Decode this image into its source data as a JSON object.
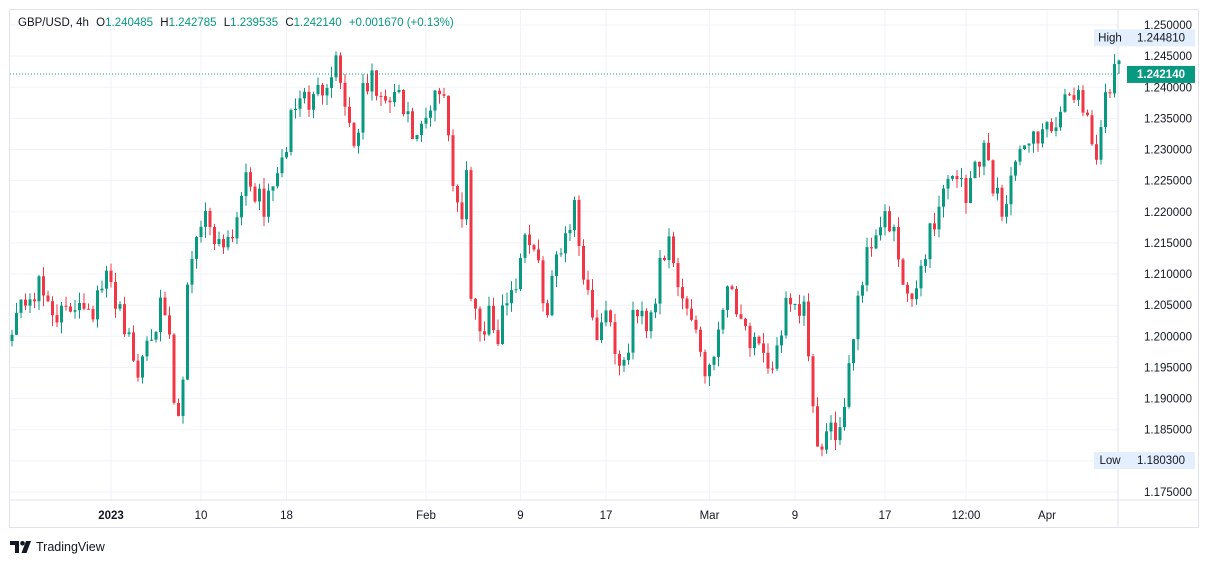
{
  "legend": {
    "symbol": "GBP/USD",
    "interval": "4h",
    "open_label": "O",
    "open": "1.240485",
    "high_label": "H",
    "high": "1.242785",
    "low_label": "L",
    "low": "1.239535",
    "close_label": "C",
    "close": "1.242140",
    "change": "+0.001670 (+0.13%)"
  },
  "brand": {
    "name": "TradingView",
    "icon": "tradingview-logo"
  },
  "colors": {
    "up": "#089981",
    "down": "#f23645",
    "last_price": "#089981",
    "badge_bg": "#e3effd",
    "grid": "#f0f3fa"
  },
  "chart_data": {
    "type": "candlestick",
    "title": "GBP/USD, 4h",
    "ylim": [
      1.1735,
      1.2535
    ],
    "y_ticks": [
      "1.250000",
      "1.245000",
      "1.240000",
      "1.235000",
      "1.230000",
      "1.225000",
      "1.220000",
      "1.215000",
      "1.210000",
      "1.205000",
      "1.200000",
      "1.195000",
      "1.190000",
      "1.185000",
      "1.180000",
      "1.175000"
    ],
    "y_tick_values": [
      1.25,
      1.245,
      1.24,
      1.235,
      1.23,
      1.225,
      1.22,
      1.215,
      1.21,
      1.205,
      1.2,
      1.195,
      1.19,
      1.185,
      1.18,
      1.175
    ],
    "x_ticks": [
      "2023",
      "10",
      "18",
      "Feb",
      "9",
      "17",
      "Mar",
      "9",
      "17",
      "12:00",
      "Apr"
    ],
    "x_tick_candle_index": [
      22,
      42,
      61,
      92,
      113,
      132,
      155,
      174,
      194,
      212,
      230
    ],
    "grid": true,
    "high_marker": {
      "label": "High",
      "value": "1.244810",
      "y": 1.24481
    },
    "low_marker": {
      "label": "Low",
      "value": "1.180300",
      "y": 1.1803
    },
    "last_price": {
      "value": "1.242140",
      "y": 1.24214
    },
    "close_path": [
      [
        0,
        1.2025
      ],
      [
        3,
        1.206
      ],
      [
        6,
        1.2075
      ],
      [
        9,
        1.2045
      ],
      [
        12,
        1.203
      ],
      [
        15,
        1.2065
      ],
      [
        18,
        1.2045
      ],
      [
        21,
        1.209
      ],
      [
        24,
        1.205
      ],
      [
        26,
        1.199
      ],
      [
        28,
        1.1935
      ],
      [
        30,
        1.2005
      ],
      [
        33,
        1.204
      ],
      [
        35,
        1.199
      ],
      [
        36,
        1.189
      ],
      [
        37,
        1.186
      ],
      [
        38,
        1.1925
      ],
      [
        39,
        1.209
      ],
      [
        41,
        1.217
      ],
      [
        43,
        1.2195
      ],
      [
        46,
        1.2155
      ],
      [
        49,
        1.2165
      ],
      [
        51,
        1.2245
      ],
      [
        54,
        1.2235
      ],
      [
        56,
        1.2195
      ],
      [
        58,
        1.2255
      ],
      [
        60,
        1.2265
      ],
      [
        62,
        1.2355
      ],
      [
        64,
        1.2385
      ],
      [
        67,
        1.2375
      ],
      [
        70,
        1.242
      ],
      [
        72,
        1.2445
      ],
      [
        74,
        1.238
      ],
      [
        76,
        1.2305
      ],
      [
        78,
        1.2385
      ],
      [
        80,
        1.2415
      ],
      [
        83,
        1.236
      ],
      [
        85,
        1.2395
      ],
      [
        88,
        1.234
      ],
      [
        90,
        1.231
      ],
      [
        92,
        1.234
      ],
      [
        94,
        1.238
      ],
      [
        96,
        1.2395
      ],
      [
        97,
        1.233
      ],
      [
        98,
        1.225
      ],
      [
        100,
        1.2185
      ],
      [
        101,
        1.226
      ],
      [
        102,
        1.208
      ],
      [
        104,
        1.201
      ],
      [
        106,
        1.204
      ],
      [
        108,
        1.199
      ],
      [
        110,
        1.207
      ],
      [
        112,
        1.2085
      ],
      [
        114,
        1.2175
      ],
      [
        116,
        1.213
      ],
      [
        118,
        1.2075
      ],
      [
        119,
        1.2035
      ],
      [
        121,
        1.213
      ],
      [
        123,
        1.217
      ],
      [
        125,
        1.2205
      ],
      [
        126,
        1.215
      ],
      [
        128,
        1.207
      ],
      [
        130,
        1.2005
      ],
      [
        132,
        1.205
      ],
      [
        134,
        1.1985
      ],
      [
        136,
        1.194
      ],
      [
        138,
        1.2035
      ],
      [
        141,
        1.2025
      ],
      [
        143,
        1.2065
      ],
      [
        144,
        1.2135
      ],
      [
        146,
        1.214
      ],
      [
        148,
        1.2075
      ],
      [
        150,
        1.2045
      ],
      [
        152,
        1.202
      ],
      [
        154,
        1.194
      ],
      [
        156,
        1.1975
      ],
      [
        158,
        1.206
      ],
      [
        160,
        1.208
      ],
      [
        162,
        1.2035
      ],
      [
        164,
        1.1995
      ],
      [
        166,
        1.197
      ],
      [
        168,
        1.1935
      ],
      [
        170,
        1.1985
      ],
      [
        172,
        1.2045
      ],
      [
        174,
        1.203
      ],
      [
        176,
        1.205
      ],
      [
        178,
        1.187
      ],
      [
        180,
        1.181
      ],
      [
        182,
        1.184
      ],
      [
        184,
        1.186
      ],
      [
        186,
        1.1955
      ],
      [
        188,
        1.2065
      ],
      [
        190,
        1.213
      ],
      [
        192,
        1.2175
      ],
      [
        194,
        1.219
      ],
      [
        196,
        1.2155
      ],
      [
        198,
        1.2085
      ],
      [
        200,
        1.204
      ],
      [
        202,
        1.2115
      ],
      [
        204,
        1.217
      ],
      [
        206,
        1.2205
      ],
      [
        208,
        1.226
      ],
      [
        210,
        1.2265
      ],
      [
        212,
        1.2215
      ],
      [
        214,
        1.228
      ],
      [
        216,
        1.2305
      ],
      [
        218,
        1.2245
      ],
      [
        220,
        1.2205
      ],
      [
        222,
        1.226
      ],
      [
        224,
        1.228
      ],
      [
        226,
        1.233
      ],
      [
        228,
        1.2315
      ],
      [
        230,
        1.235
      ],
      [
        232,
        1.232
      ],
      [
        234,
        1.237
      ],
      [
        236,
        1.24
      ],
      [
        238,
        1.237
      ],
      [
        240,
        1.233
      ],
      [
        241,
        1.2285
      ],
      [
        243,
        1.2375
      ],
      [
        245,
        1.242
      ],
      [
        246,
        1.2422
      ]
    ]
  }
}
